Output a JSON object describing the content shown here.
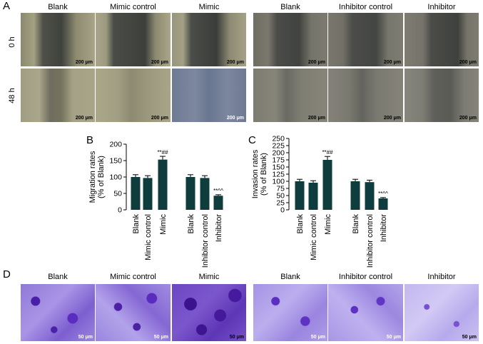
{
  "panels": {
    "A": "A",
    "B": "B",
    "C": "C",
    "D": "D"
  },
  "panelA": {
    "left_titles": [
      "Blank",
      "Mimic control",
      "Mimic"
    ],
    "right_titles": [
      "Blank",
      "Inhibitor control",
      "Inhibitor"
    ],
    "row_labels": [
      "0 h",
      "48 h"
    ],
    "scale_bar": "200 μm"
  },
  "panelD": {
    "left_titles": [
      "Blank",
      "Mimic control",
      "Mimic"
    ],
    "right_titles": [
      "Blank",
      "Inhibitor control",
      "Inhibitor"
    ],
    "scale_bar": "50 μm"
  },
  "chart_data": [
    {
      "type": "bar",
      "panel": "B",
      "ylabel": "Migration rates\n(% of Blank)",
      "ylim": [
        0,
        200
      ],
      "yticks": [
        0,
        50,
        100,
        150,
        200
      ],
      "categories": [
        "Blank",
        "Mimic control",
        "Mimic",
        "Blank",
        "Inhibitor control",
        "Inhibitor"
      ],
      "values": [
        100,
        97,
        153,
        100,
        97,
        43
      ],
      "errors": [
        7,
        7,
        10,
        7,
        7,
        3
      ],
      "annotations": [
        "",
        "",
        "**##",
        "",
        "",
        "**^^"
      ],
      "bar_color": "#0f3d3d",
      "grid": false
    },
    {
      "type": "bar",
      "panel": "C",
      "ylabel": "Invasion rates\n(% of Blank)",
      "ylim": [
        0,
        250
      ],
      "yticks": [
        0,
        25,
        50,
        75,
        100,
        125,
        150,
        175,
        200,
        225,
        250
      ],
      "categories": [
        "Blank",
        "Mimic control",
        "Mimic",
        "Blank",
        "Inhibitor control",
        "Inhibitor"
      ],
      "values": [
        100,
        95,
        175,
        100,
        97,
        40
      ],
      "errors": [
        7,
        7,
        12,
        7,
        7,
        3
      ],
      "annotations": [
        "",
        "",
        "**##",
        "",
        "",
        "**^^"
      ],
      "bar_color": "#0f3d3d",
      "grid": false
    }
  ]
}
